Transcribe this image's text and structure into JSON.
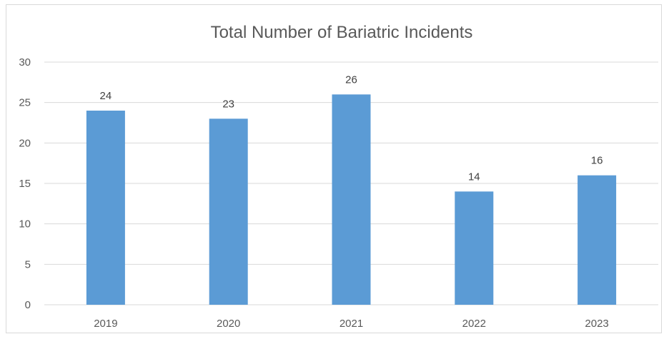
{
  "chart_data": {
    "type": "bar",
    "title": "Total Number of Bariatric Incidents",
    "categories": [
      "2019",
      "2020",
      "2021",
      "2022",
      "2023"
    ],
    "values": [
      24,
      23,
      26,
      14,
      16
    ],
    "data_labels": [
      "24",
      "23",
      "26",
      "14",
      "16"
    ],
    "ylim": [
      0,
      30
    ],
    "yticks": [
      "0",
      "5",
      "10",
      "15",
      "20",
      "25",
      "30"
    ],
    "grid": true,
    "legend": "none",
    "bar_color": "#5b9bd5",
    "grid_color": "#d9d9d9"
  }
}
